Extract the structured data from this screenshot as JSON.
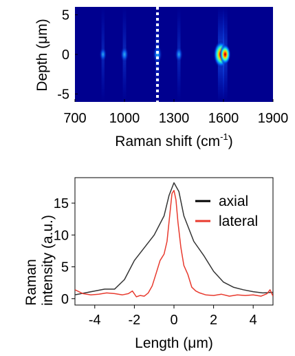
{
  "chart_data": [
    {
      "type": "heatmap",
      "xlabel": "Raman shift (cm",
      "xlabel_sup": "-1",
      "xlabel_end": ")",
      "ylabel": "Depth (μm)",
      "xlim": [
        700,
        1900
      ],
      "ylim": [
        -6,
        6
      ],
      "xticks": [
        700,
        1000,
        1300,
        1600,
        1900
      ],
      "yticks": [
        5,
        0,
        -5
      ],
      "xtick_labels": [
        "700",
        "1000",
        "1300",
        "1600",
        "1900"
      ],
      "ytick_labels": [
        "5",
        "0",
        "-5"
      ],
      "colormap": "jet",
      "background_color": "#00008f",
      "marker_line": {
        "x": 1200,
        "style": "dotted",
        "color": "#ffffff"
      },
      "peaks": [
        {
          "x": 870,
          "y": 0,
          "intensity": 0.22
        },
        {
          "x": 1000,
          "y": 0,
          "intensity": 0.32
        },
        {
          "x": 1200,
          "y": 0,
          "intensity": 0.45
        },
        {
          "x": 1330,
          "y": 0,
          "intensity": 0.28
        },
        {
          "x": 1585,
          "y": 0,
          "intensity": 1.0
        },
        {
          "x": 1610,
          "y": 0,
          "intensity": 0.6
        }
      ]
    },
    {
      "type": "line",
      "xlabel": "Length (μm)",
      "ylabel_line1": "Raman",
      "ylabel_line2": "intensity (a.u.)",
      "xlim": [
        -5,
        5
      ],
      "ylim": [
        -1,
        19
      ],
      "xticks": [
        -4,
        -2,
        0,
        2,
        4
      ],
      "yticks": [
        0,
        5,
        10,
        15
      ],
      "xtick_labels": [
        "-4",
        "-2",
        "0",
        "2",
        "4"
      ],
      "ytick_labels": [
        "0",
        "5",
        "10",
        "15"
      ],
      "legend_position": "top-right",
      "series": [
        {
          "name": "axial",
          "color": "#333333",
          "x": [
            -5,
            -4.5,
            -4,
            -3.5,
            -3,
            -2.5,
            -2,
            -1.5,
            -1,
            -0.5,
            -0.25,
            0,
            0.25,
            0.5,
            1,
            1.5,
            2,
            2.5,
            3,
            3.5,
            4,
            4.5,
            5
          ],
          "y": [
            0.6,
            0.9,
            1.2,
            1.5,
            1.5,
            3.0,
            6.0,
            8.0,
            10.0,
            13.0,
            16.2,
            18.2,
            16.8,
            13.0,
            9.0,
            6.8,
            4.3,
            2.6,
            1.8,
            1.4,
            1.1,
            0.9,
            1.0
          ]
        },
        {
          "name": "lateral",
          "color": "#e8392d",
          "x": [
            -5,
            -4.6,
            -4.2,
            -3.8,
            -3.4,
            -3.0,
            -2.6,
            -2.3,
            -2.1,
            -1.9,
            -1.7,
            -1.5,
            -1.3,
            -1.1,
            -0.9,
            -0.7,
            -0.5,
            -0.35,
            -0.2,
            -0.1,
            0,
            0.1,
            0.2,
            0.35,
            0.5,
            0.7,
            0.9,
            1.1,
            1.3,
            1.6,
            2.0,
            2.4,
            2.8,
            3.2,
            3.6,
            4.0,
            4.4,
            4.7,
            4.85,
            5
          ],
          "y": [
            1.4,
            0.8,
            0.6,
            0.7,
            0.9,
            0.8,
            0.6,
            0.8,
            1.2,
            0.3,
            0.5,
            0.4,
            0.9,
            2.0,
            4.0,
            6.0,
            7.0,
            9.0,
            13.5,
            16.5,
            17.0,
            15.5,
            12.0,
            8.0,
            5.2,
            3.8,
            1.8,
            1.2,
            0.9,
            0.6,
            0.5,
            0.7,
            0.4,
            0.6,
            0.5,
            0.6,
            0.4,
            0.8,
            1.4,
            0.4
          ]
        }
      ]
    }
  ]
}
